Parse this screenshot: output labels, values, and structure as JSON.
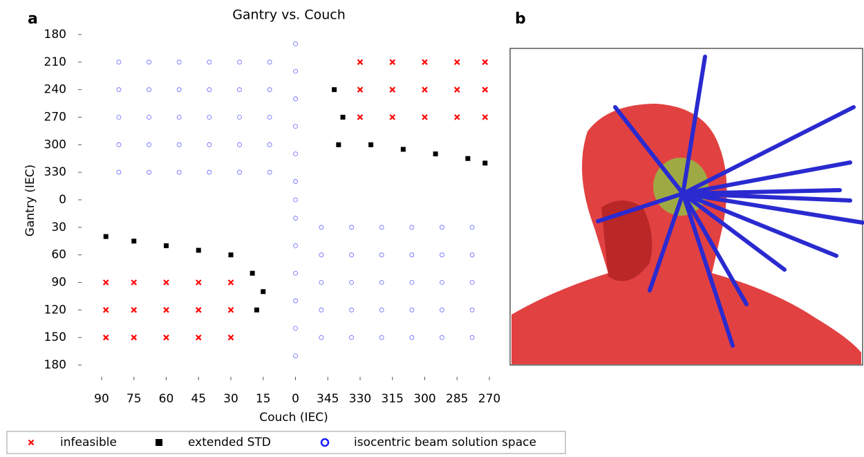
{
  "panel_labels": [
    "a",
    "b"
  ],
  "chart_data": {
    "type": "scatter",
    "title": "Gantry vs. Couch",
    "x_label": "Couch (IEC)",
    "y_label": "Gantry (IEC)",
    "xlim": [
      90,
      -90
    ],
    "ylim": [
      180,
      -180
    ],
    "xticks": [
      90,
      75,
      60,
      45,
      30,
      15,
      0,
      {
        "value": -15,
        "label": "345"
      },
      {
        "value": -30,
        "label": "330"
      },
      {
        "value": -45,
        "label": "315"
      },
      {
        "value": -60,
        "label": "300"
      },
      {
        "value": -75,
        "label": "285"
      },
      {
        "value": -90,
        "label": "270"
      }
    ],
    "yticks": [
      {
        "value": -180,
        "label": "180"
      },
      {
        "value": -150,
        "label": "210"
      },
      {
        "value": -120,
        "label": "240"
      },
      {
        "value": -90,
        "label": "270"
      },
      {
        "value": -60,
        "label": "300"
      },
      {
        "value": -30,
        "label": "330"
      },
      0,
      30,
      60,
      90,
      120,
      150,
      180
    ],
    "series": [
      {
        "name": "infeasible",
        "color": "#ff0000",
        "marker": "x",
        "x": [
          -30,
          -45,
          -60,
          -75,
          -88,
          -30,
          -45,
          -60,
          -75,
          -88,
          -30,
          -45,
          -60,
          -75,
          -88,
          88,
          75,
          60,
          45,
          30,
          88,
          75,
          60,
          45,
          30,
          88,
          75,
          60,
          45,
          30
        ],
        "y": [
          -150,
          -150,
          -150,
          -150,
          -150,
          -120,
          -120,
          -120,
          -120,
          -120,
          -90,
          -90,
          -90,
          -90,
          -90,
          90,
          90,
          90,
          90,
          90,
          120,
          120,
          120,
          120,
          120,
          150,
          150,
          150,
          150,
          150
        ]
      },
      {
        "name": "extended STD",
        "color": "#000000",
        "marker": "square",
        "x": [
          -18,
          -22,
          -20,
          -35,
          -50,
          -65,
          -80,
          -88,
          88,
          75,
          60,
          45,
          30,
          20,
          15,
          18
        ],
        "y": [
          -120,
          -90,
          -60,
          -60,
          -55,
          -50,
          -45,
          -40,
          40,
          45,
          50,
          55,
          60,
          80,
          100,
          120
        ]
      },
      {
        "name": "isocentric beam solution space",
        "color": "#6666ff",
        "marker": "circle",
        "x": [
          82,
          68,
          54,
          40,
          26,
          12,
          82,
          68,
          54,
          40,
          26,
          12,
          82,
          68,
          54,
          40,
          26,
          12,
          82,
          68,
          54,
          40,
          26,
          12,
          82,
          68,
          54,
          40,
          26,
          12,
          -12,
          -26,
          -40,
          -54,
          -68,
          -82,
          -12,
          -26,
          -40,
          -54,
          -68,
          -82,
          -12,
          -26,
          -40,
          -54,
          -68,
          -82,
          -12,
          -26,
          -40,
          -54,
          -68,
          -82,
          -12,
          -26,
          -40,
          -54,
          -68,
          -82,
          0,
          0,
          0,
          0,
          0,
          0,
          0,
          0,
          0,
          0,
          0,
          0,
          0
        ],
        "y": [
          -150,
          -150,
          -150,
          -150,
          -150,
          -150,
          -120,
          -120,
          -120,
          -120,
          -120,
          -120,
          -90,
          -90,
          -90,
          -90,
          -90,
          -90,
          -60,
          -60,
          -60,
          -60,
          -60,
          -60,
          -30,
          -30,
          -30,
          -30,
          -30,
          -30,
          30,
          30,
          30,
          30,
          30,
          30,
          60,
          60,
          60,
          60,
          60,
          60,
          90,
          90,
          90,
          90,
          90,
          90,
          120,
          120,
          120,
          120,
          120,
          120,
          150,
          150,
          150,
          150,
          150,
          150,
          -170,
          -140,
          -110,
          -80,
          -50,
          -20,
          0,
          20,
          50,
          80,
          110,
          140,
          170
        ]
      }
    ]
  }
}
